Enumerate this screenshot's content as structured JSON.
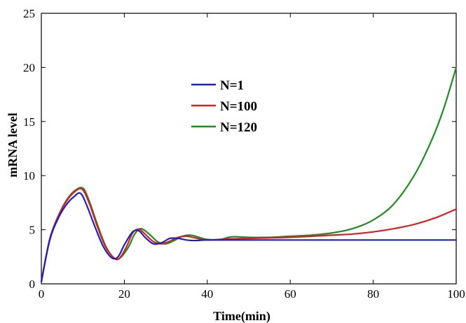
{
  "chart_data": {
    "type": "line",
    "title": "",
    "xlabel": "Time(min)",
    "ylabel": "mRNA level",
    "xlim": [
      0,
      100
    ],
    "ylim": [
      0,
      25
    ],
    "xticks": [
      0,
      20,
      40,
      60,
      80,
      100
    ],
    "yticks": [
      0,
      5,
      10,
      15,
      20,
      25
    ],
    "xtick_labels": [
      "0",
      "20",
      "40",
      "60",
      "80",
      "100"
    ],
    "ytick_labels": [
      "0",
      "5",
      "10",
      "15",
      "20",
      "25"
    ],
    "grid": false,
    "legend_position": "upper-center",
    "series": [
      {
        "name": "N=1",
        "color": "#1f1fbf",
        "x": [
          0,
          2,
          4,
          6,
          8,
          9.5,
          11,
          13,
          15,
          17,
          18.5,
          20,
          22,
          23.5,
          25,
          27,
          29,
          31,
          33,
          35,
          37,
          40,
          45,
          50,
          60,
          70,
          80,
          90,
          100
        ],
        "y": [
          0.2,
          4.0,
          6.0,
          7.3,
          8.1,
          8.35,
          7.2,
          5.2,
          3.4,
          2.4,
          2.5,
          3.6,
          4.8,
          4.9,
          4.3,
          3.7,
          3.8,
          4.2,
          4.2,
          4.05,
          4.0,
          4.05,
          4.05,
          4.05,
          4.05,
          4.05,
          4.05,
          4.05,
          4.05
        ]
      },
      {
        "name": "N=100",
        "color": "#d42222",
        "x": [
          0,
          2,
          4,
          6,
          8,
          9.8,
          11.5,
          13.5,
          15.5,
          17.5,
          18.8,
          20.5,
          22,
          23.5,
          25,
          27,
          29,
          31,
          33,
          35,
          37,
          40,
          45,
          50,
          60,
          70,
          75,
          80,
          85,
          90,
          95,
          100
        ],
        "y": [
          0.2,
          4.1,
          6.2,
          7.6,
          8.5,
          8.75,
          7.5,
          5.3,
          3.4,
          2.4,
          2.35,
          3.4,
          4.7,
          5.05,
          4.6,
          3.9,
          3.7,
          3.95,
          4.3,
          4.4,
          4.25,
          4.05,
          4.15,
          4.2,
          4.3,
          4.5,
          4.6,
          4.8,
          5.1,
          5.5,
          6.1,
          6.9
        ]
      },
      {
        "name": "N=120",
        "color": "#1f8c1f",
        "x": [
          0,
          2,
          4,
          6,
          8,
          10,
          11.5,
          13.5,
          15.5,
          17.5,
          19,
          21,
          22.5,
          24,
          26,
          28,
          30,
          32,
          34,
          36,
          38,
          40,
          43,
          46,
          50,
          55,
          60,
          65,
          70,
          75,
          80,
          85,
          90,
          94,
          97,
          100
        ],
        "y": [
          0.2,
          4.1,
          6.2,
          7.7,
          8.6,
          8.85,
          7.7,
          5.5,
          3.5,
          2.4,
          2.4,
          3.4,
          4.6,
          5.1,
          4.6,
          3.9,
          3.7,
          4.0,
          4.4,
          4.5,
          4.3,
          4.1,
          4.1,
          4.35,
          4.3,
          4.3,
          4.4,
          4.5,
          4.7,
          5.1,
          5.9,
          7.4,
          10.1,
          13.2,
          16.2,
          20.0
        ]
      }
    ]
  }
}
